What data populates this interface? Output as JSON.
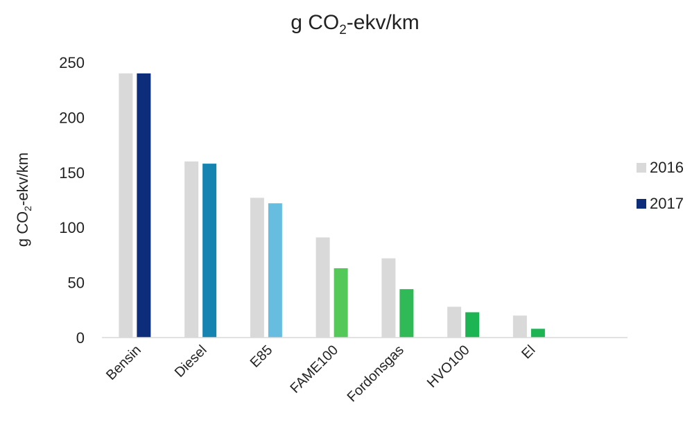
{
  "chart_data": {
    "type": "bar",
    "title": {
      "prefix": "g CO",
      "subscript": "2",
      "suffix": "-ekv/km"
    },
    "ylabel": {
      "prefix": "g CO",
      "subscript": "2",
      "suffix": "-ekv/km"
    },
    "xlabel": "",
    "categories": [
      "Bensin",
      "Diesel",
      "E85",
      "FAME100",
      "Fordonsgas",
      "HVO100",
      "El",
      ""
    ],
    "ylim": [
      0,
      250
    ],
    "y_ticks": [
      "0",
      "50",
      "100",
      "150",
      "200",
      "250"
    ],
    "grid": false,
    "legend_position": "right",
    "series": [
      {
        "name": "2016",
        "values": [
          240,
          160,
          127,
          91,
          72,
          28,
          20,
          null
        ],
        "color": "#d9d9d9"
      },
      {
        "name": "2017",
        "values": [
          240,
          158,
          122,
          63,
          44,
          23,
          8,
          null
        ],
        "colors": [
          "#0d2c7a",
          "#1584b0",
          "#67bde0",
          "#55c85a",
          "#2fb957",
          "#1db554",
          "#1db554",
          "#1db554"
        ],
        "legend_color": "#0d2c7a"
      }
    ]
  }
}
